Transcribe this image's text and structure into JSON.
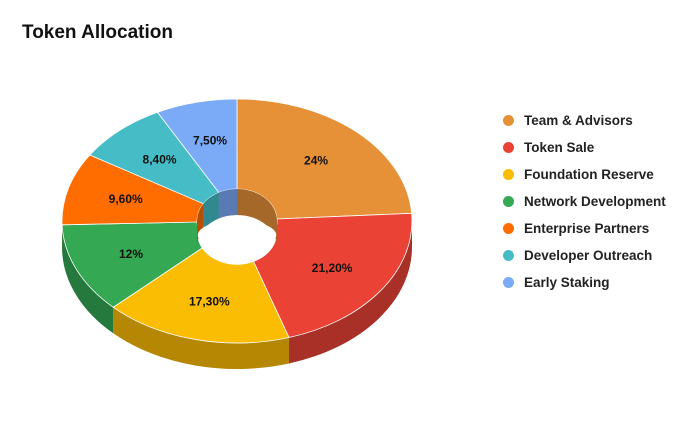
{
  "chart_data": {
    "type": "pie",
    "variant": "3d-donut",
    "title": "Token Allocation",
    "legend_position": "right",
    "slices": [
      {
        "name": "Team & Advisors",
        "value": 24,
        "label": "24%",
        "color": "#E69138"
      },
      {
        "name": "Token Sale",
        "value": 21.2,
        "label": "21,20%",
        "color": "#EA4335"
      },
      {
        "name": "Foundation Reserve",
        "value": 17.3,
        "label": "17,30%",
        "color": "#FBBC04"
      },
      {
        "name": "Network Development",
        "value": 12,
        "label": "12%",
        "color": "#34A853"
      },
      {
        "name": "Enterprise Partners",
        "value": 9.6,
        "label": "9,60%",
        "color": "#FF6D01"
      },
      {
        "name": "Developer Outreach",
        "value": 8.4,
        "label": "8,40%",
        "color": "#46BDC6"
      },
      {
        "name": "Early Staking",
        "value": 7.5,
        "label": "7,50%",
        "color": "#7BAAF7"
      }
    ]
  }
}
